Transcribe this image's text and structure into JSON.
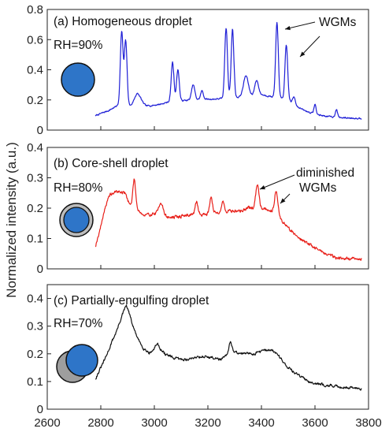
{
  "figure": {
    "ylabel": "Normalized intensity (a.u.)",
    "x_ticks": [
      2600,
      2800,
      3000,
      3200,
      3400,
      3600,
      3800
    ]
  },
  "chart_data": [
    {
      "type": "line",
      "panel": "a",
      "title": "(a) Homogeneous droplet",
      "condition": "RH=90%",
      "annotation": "WGMs",
      "xlim": [
        2600,
        3800
      ],
      "ylim": [
        0,
        0.8
      ],
      "yticks": [
        0,
        0.2,
        0.4,
        0.6,
        0.8
      ],
      "line_color": "#1f1fd6",
      "icon": "homogeneous-droplet",
      "baseline": [
        [
          2780,
          0.095
        ],
        [
          2800,
          0.11
        ],
        [
          2830,
          0.13
        ],
        [
          2850,
          0.15
        ],
        [
          2870,
          0.17
        ],
        [
          2890,
          0.18
        ],
        [
          2910,
          0.16
        ],
        [
          2930,
          0.17
        ],
        [
          2950,
          0.19
        ],
        [
          2970,
          0.16
        ],
        [
          3000,
          0.165
        ],
        [
          3030,
          0.175
        ],
        [
          3060,
          0.19
        ],
        [
          3100,
          0.195
        ],
        [
          3140,
          0.2
        ],
        [
          3180,
          0.205
        ],
        [
          3220,
          0.205
        ],
        [
          3260,
          0.21
        ],
        [
          3300,
          0.215
        ],
        [
          3340,
          0.225
        ],
        [
          3370,
          0.23
        ],
        [
          3400,
          0.235
        ],
        [
          3430,
          0.225
        ],
        [
          3460,
          0.215
        ],
        [
          3500,
          0.2
        ],
        [
          3530,
          0.16
        ],
        [
          3560,
          0.13
        ],
        [
          3600,
          0.105
        ],
        [
          3650,
          0.09
        ],
        [
          3700,
          0.082
        ],
        [
          3775,
          0.078
        ]
      ],
      "peaks": [
        [
          2878,
          0.65,
          5
        ],
        [
          2893,
          0.59,
          5
        ],
        [
          2935,
          0.24,
          10
        ],
        [
          3068,
          0.45,
          5
        ],
        [
          3088,
          0.4,
          5
        ],
        [
          3145,
          0.3,
          6
        ],
        [
          3178,
          0.26,
          5
        ],
        [
          3268,
          0.68,
          5
        ],
        [
          3292,
          0.67,
          5
        ],
        [
          3342,
          0.36,
          9
        ],
        [
          3382,
          0.33,
          7
        ],
        [
          3458,
          0.71,
          5
        ],
        [
          3493,
          0.56,
          5
        ],
        [
          3522,
          0.22,
          5
        ],
        [
          3600,
          0.17,
          4
        ],
        [
          3680,
          0.14,
          4
        ]
      ],
      "noise": 0.008,
      "seed": 7
    },
    {
      "type": "line",
      "panel": "b",
      "title": "(b) Core-shell droplet",
      "condition": "RH=80%",
      "annotation": [
        "diminished",
        "WGMs"
      ],
      "xlim": [
        2600,
        3800
      ],
      "ylim": [
        0,
        0.4
      ],
      "yticks": [
        0,
        0.1,
        0.2,
        0.3,
        0.4
      ],
      "line_color": "#e8201a",
      "icon": "core-shell-droplet",
      "baseline": [
        [
          2780,
          0.075
        ],
        [
          2800,
          0.14
        ],
        [
          2815,
          0.2
        ],
        [
          2835,
          0.245
        ],
        [
          2860,
          0.255
        ],
        [
          2890,
          0.25
        ],
        [
          2910,
          0.21
        ],
        [
          2935,
          0.2
        ],
        [
          2960,
          0.175
        ],
        [
          2990,
          0.18
        ],
        [
          3020,
          0.185
        ],
        [
          3050,
          0.17
        ],
        [
          3080,
          0.17
        ],
        [
          3110,
          0.175
        ],
        [
          3140,
          0.18
        ],
        [
          3170,
          0.18
        ],
        [
          3200,
          0.18
        ],
        [
          3230,
          0.185
        ],
        [
          3260,
          0.19
        ],
        [
          3290,
          0.19
        ],
        [
          3320,
          0.19
        ],
        [
          3350,
          0.2
        ],
        [
          3380,
          0.2
        ],
        [
          3410,
          0.2
        ],
        [
          3440,
          0.19
        ],
        [
          3470,
          0.165
        ],
        [
          3500,
          0.135
        ],
        [
          3530,
          0.11
        ],
        [
          3560,
          0.09
        ],
        [
          3600,
          0.07
        ],
        [
          3640,
          0.05
        ],
        [
          3680,
          0.038
        ],
        [
          3720,
          0.033
        ],
        [
          3775,
          0.033
        ]
      ],
      "peaks": [
        [
          2925,
          0.295,
          5
        ],
        [
          3025,
          0.22,
          7
        ],
        [
          3158,
          0.22,
          5
        ],
        [
          3212,
          0.24,
          5
        ],
        [
          3256,
          0.22,
          5
        ],
        [
          3385,
          0.28,
          6
        ],
        [
          3455,
          0.26,
          6
        ]
      ],
      "noise": 0.009,
      "seed": 19
    },
    {
      "type": "line",
      "panel": "c",
      "title": "(c) Partially-engulfing droplet",
      "condition": "RH=70%",
      "xlim": [
        2600,
        3800
      ],
      "ylim": [
        0,
        0.45
      ],
      "yticks": [
        0,
        0.1,
        0.2,
        0.3,
        0.4
      ],
      "line_color": "#111111",
      "icon": "partially-engulfing-droplet",
      "baseline": [
        [
          2780,
          0.11
        ],
        [
          2800,
          0.15
        ],
        [
          2820,
          0.19
        ],
        [
          2840,
          0.24
        ],
        [
          2860,
          0.285
        ],
        [
          2880,
          0.34
        ],
        [
          2895,
          0.375
        ],
        [
          2905,
          0.35
        ],
        [
          2920,
          0.3
        ],
        [
          2940,
          0.25
        ],
        [
          2960,
          0.22
        ],
        [
          2980,
          0.205
        ],
        [
          3000,
          0.21
        ],
        [
          3020,
          0.215
        ],
        [
          3040,
          0.2
        ],
        [
          3070,
          0.185
        ],
        [
          3100,
          0.18
        ],
        [
          3130,
          0.18
        ],
        [
          3160,
          0.19
        ],
        [
          3190,
          0.19
        ],
        [
          3220,
          0.185
        ],
        [
          3250,
          0.18
        ],
        [
          3280,
          0.2
        ],
        [
          3310,
          0.205
        ],
        [
          3340,
          0.2
        ],
        [
          3370,
          0.2
        ],
        [
          3400,
          0.21
        ],
        [
          3430,
          0.215
        ],
        [
          3460,
          0.2
        ],
        [
          3490,
          0.16
        ],
        [
          3520,
          0.135
        ],
        [
          3550,
          0.115
        ],
        [
          3580,
          0.1
        ],
        [
          3620,
          0.09
        ],
        [
          3660,
          0.085
        ],
        [
          3700,
          0.08
        ],
        [
          3775,
          0.075
        ]
      ],
      "peaks": [
        [
          3010,
          0.235,
          8
        ],
        [
          3285,
          0.24,
          6
        ]
      ],
      "noise": 0.008,
      "seed": 31
    }
  ]
}
